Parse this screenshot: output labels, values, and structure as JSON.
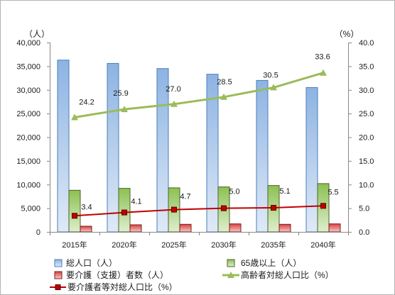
{
  "chart_data": {
    "type": "bar",
    "categories": [
      "2015年",
      "2020年",
      "2025年",
      "2030年",
      "2035年",
      "2040年"
    ],
    "y_axis": {
      "title": "（人）",
      "min": 0,
      "max": 40000,
      "step": 5000,
      "tick_labels": [
        "0",
        "5,000",
        "10,000",
        "15,000",
        "20,000",
        "25,000",
        "30,000",
        "35,000",
        "40,000"
      ]
    },
    "y2_axis": {
      "title": "（%）",
      "min": 0,
      "max": 40,
      "step": 5,
      "tick_labels": [
        "0.0",
        "5.0",
        "10.0",
        "15.0",
        "20.0",
        "25.0",
        "30.0",
        "35.0",
        "40.0"
      ]
    },
    "grid": false,
    "legend": "bottom",
    "series": [
      {
        "name": "総人口（人）",
        "type": "bar",
        "axis": "left",
        "values": [
          36300,
          35600,
          34500,
          33300,
          32000,
          30500
        ],
        "color": "#8DB3E2",
        "edge_color": "#4A7EBB"
      },
      {
        "name": "65歳以上（人）",
        "type": "bar",
        "axis": "left",
        "values": [
          8800,
          9200,
          9300,
          9500,
          9800,
          10200
        ],
        "color": "#8CC152",
        "edge_color": "#4F6228"
      },
      {
        "name": "要介護（支援）者数（人）",
        "type": "bar",
        "axis": "left",
        "values": [
          1200,
          1500,
          1600,
          1700,
          1600,
          1700
        ],
        "color": "#D9413F",
        "edge_color": "#7F1F1F"
      },
      {
        "name": "高齢者対総人口比（%）",
        "type": "line",
        "axis": "right",
        "marker": "triangle",
        "values": [
          24.2,
          25.9,
          27.0,
          28.5,
          30.5,
          33.6
        ],
        "data_labels": [
          "24.2",
          "25.9",
          "27.0",
          "28.5",
          "30.5",
          "33.6"
        ],
        "color": "#9BBB59"
      },
      {
        "name": "要介護者等対総人口比（%）",
        "type": "line",
        "axis": "right",
        "marker": "square",
        "values": [
          3.4,
          4.1,
          4.7,
          5.0,
          5.1,
          5.5
        ],
        "data_labels": [
          "3.4",
          "4.1",
          "4.7",
          "5.0",
          "5.1",
          "5.5"
        ],
        "color": "#C00000"
      }
    ]
  }
}
